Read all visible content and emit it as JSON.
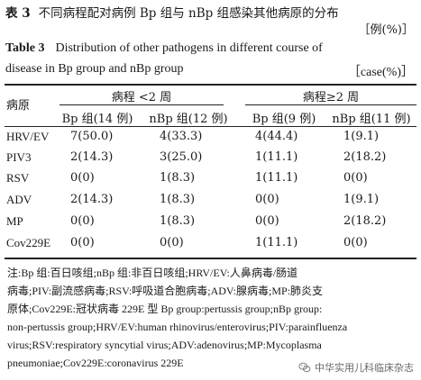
{
  "title": {
    "cn_number": "表 3",
    "cn_text": "不同病程配对病例 Bp 组与 nBp 组感染其他病原的分布",
    "cn_unit": "［例(%)］",
    "en_number": "Table 3",
    "en_line1": "Distribution of other pathogens in different course of",
    "en_line2": "disease in Bp group and nBp group",
    "en_unit": "［case(%)］"
  },
  "table": {
    "pathogen_header": "病原",
    "group_headers": [
      "病程 <2 周",
      "病程≥2 周"
    ],
    "sub_headers": [
      "Bp 组(14 例)",
      "nBp 组(12 例)",
      "Bp 组(9 例)",
      "nBp 组(11 例)"
    ],
    "rows": [
      {
        "pathogen": "HRV/EV",
        "cells": [
          "7(50.0)",
          "4(33.3)",
          "4(44.4)",
          "1(9.1)"
        ]
      },
      {
        "pathogen": "PIV3",
        "cells": [
          "2(14.3)",
          "3(25.0)",
          "1(11.1)",
          "2(18.2)"
        ]
      },
      {
        "pathogen": "RSV",
        "cells": [
          "0(0)",
          "1(8.3)",
          "1(11.1)",
          "0(0)"
        ]
      },
      {
        "pathogen": "ADV",
        "cells": [
          "2(14.3)",
          "1(8.3)",
          "0(0)",
          "1(9.1)"
        ]
      },
      {
        "pathogen": "MP",
        "cells": [
          "0(0)",
          "1(8.3)",
          "0(0)",
          "2(18.2)"
        ]
      },
      {
        "pathogen": "Cov229E",
        "cells": [
          "0(0)",
          "0(0)",
          "1(11.1)",
          "0(0)"
        ]
      }
    ]
  },
  "notes": [
    "注:Bp 组:百日咳组;nBp 组:非百日咳组;HRV/EV:人鼻病毒/肠道",
    "病毒;PIV:副流感病毒;RSV:呼吸道合胞病毒;ADV:腺病毒;MP:肺炎支",
    "原体;Cov229E:冠状病毒 229E 型   Bp group:pertussis group;nBp group:",
    "non-pertussis group;HRV/EV:human rhinovirus/enterovirus;PIV:parainfluenza",
    "virus;RSV:respiratory syncytial virus;ADV:adenovirus;MP:Mycoplasma",
    "pneumoniae;Cov229E:coronavirus 229E"
  ],
  "watermark": {
    "text": "中华实用儿科临床杂志",
    "icon": "wechat-logo-icon"
  }
}
